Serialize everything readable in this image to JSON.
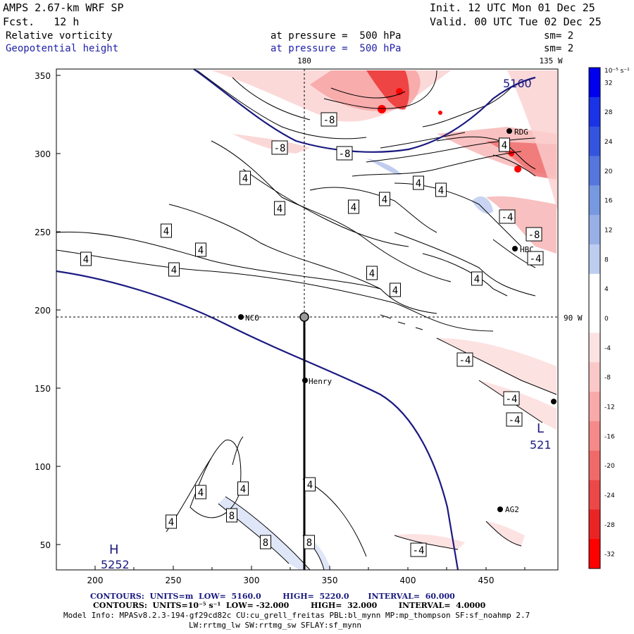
{
  "header": {
    "model_title": "AMPS 2.67-km WRF SP",
    "forecast": "Fcst.   12 h",
    "init": "Init. 12 UTC Mon 01 Dec 25",
    "valid": "Valid. 00 UTC Tue 02 Dec 25",
    "field1_name": "Relative vorticity",
    "field1_level": "at pressure =  500 hPa",
    "field1_sm": "sm= 2",
    "field2_name": "Geopotential height",
    "field2_level": "at pressure =  500 hPa",
    "field2_sm": "sm= 2"
  },
  "map": {
    "meridian_180": "180",
    "meridian_135w": "135 W",
    "parallel_90w": "90 W",
    "x_ticks": [
      "200",
      "250",
      "300",
      "350",
      "400",
      "450"
    ],
    "y_ticks": [
      "350",
      "300",
      "250",
      "200",
      "150",
      "100",
      "50"
    ],
    "stations": [
      {
        "name": "RDG"
      },
      {
        "name": "NCO"
      },
      {
        "name": "Henry"
      },
      {
        "name": "AG2"
      },
      {
        "name": "HBC"
      }
    ],
    "height_labels": [
      "5160",
      "521",
      "5252"
    ],
    "high_low": [
      "H",
      "L"
    ],
    "contour_labels": [
      "4",
      "4",
      "4",
      "4",
      "4",
      "4",
      "4",
      "4",
      "4",
      "4",
      "4",
      "4",
      "4",
      "4",
      "4",
      "4",
      "4",
      "4",
      "-8",
      "-8",
      "-8",
      "-8",
      "-4",
      "-4",
      "-4",
      "-4",
      "-4",
      "-4",
      "8",
      "8",
      "8"
    ]
  },
  "colorbar": {
    "unit": "10⁻⁵ s⁻¹",
    "labels": [
      "32",
      "28",
      "24",
      "20",
      "16",
      "12",
      "8",
      "4",
      "0",
      "-4",
      "-8",
      "-12",
      "-16",
      "-20",
      "-24",
      "-28",
      "-32"
    ],
    "colors": [
      "#0000ee",
      "#1a33e6",
      "#3355e0",
      "#5577dd",
      "#7799e0",
      "#99b0e6",
      "#bdcdf0",
      "#ffffff",
      "#ffffff",
      "#fde2e2",
      "#fbc8c8",
      "#f8aaaa",
      "#f48a8a",
      "#f06a6a",
      "#ec4848",
      "#ea2424",
      "#ff0000"
    ]
  },
  "footer": {
    "line1": "CONTOURS:  UNITS=m  LOW=  5160.0        HIGH=  5220.0       INTERVAL=  60.000",
    "line2": "CONTOURS:  UNITS=10⁻⁵ s⁻¹  LOW= -32.000        HIGH=  32.000        INTERVAL=  4.0000",
    "line3": "Model Info: MPASv8.2.3-194-gf29cd82c CU:cu_grell_freitas PBL:bl_mynn MP:mp_thompson SF:sf_noahmp 2.7",
    "line4": "LW:rrtmg_lw SW:rrtmg_sw SFLAY:sf_mynn"
  }
}
